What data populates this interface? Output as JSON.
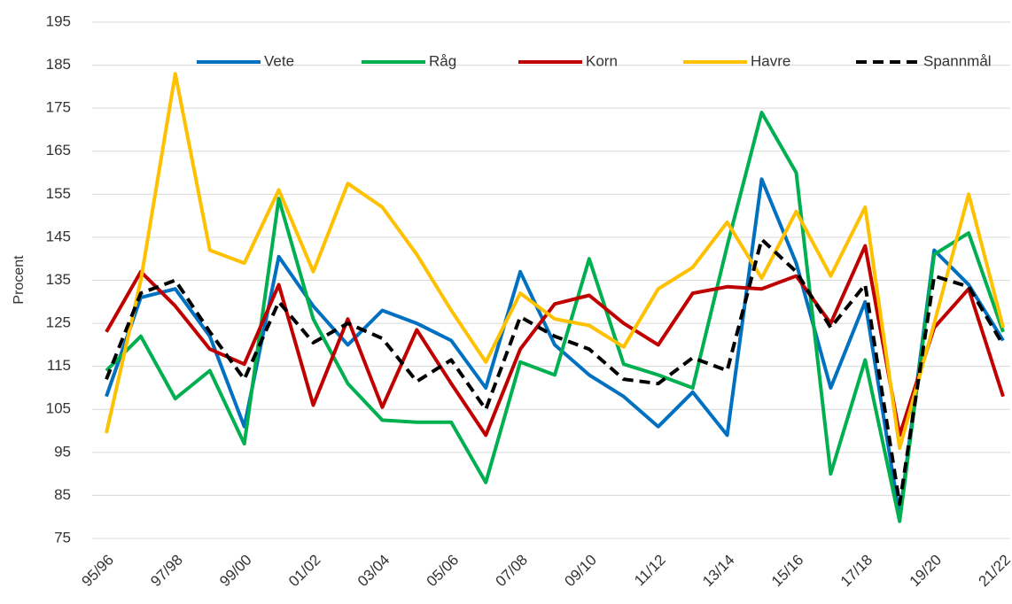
{
  "chart_data": {
    "type": "line",
    "y_label": "Procent",
    "categories": [
      "95/96",
      null,
      "97/98",
      null,
      "99/00",
      null,
      "01/02",
      null,
      "03/04",
      null,
      "05/06",
      null,
      "07/08",
      null,
      "09/10",
      null,
      "11/12",
      null,
      "13/14",
      null,
      "15/16",
      null,
      "17/18",
      null,
      "19/20",
      null,
      "21/22"
    ],
    "ylim": [
      75,
      195
    ],
    "yticks": [
      75,
      85,
      95,
      105,
      115,
      125,
      135,
      145,
      155,
      165,
      175,
      185,
      195
    ],
    "grid": true,
    "legend": "top",
    "series": [
      {
        "name": "Vete",
        "color": "#0070c0",
        "linestyle": "solid",
        "values": [
          108,
          131,
          133,
          122,
          101,
          140.5,
          129,
          120,
          128,
          125,
          121,
          110,
          137,
          120,
          113,
          108,
          101,
          109,
          99,
          158.5,
          139,
          110,
          130,
          80,
          142,
          134,
          121
        ]
      },
      {
        "name": "Råg",
        "color": "#00b050",
        "linestyle": "solid",
        "values": [
          114,
          122,
          107.5,
          114,
          97,
          154,
          126,
          111,
          102.5,
          102,
          102,
          88,
          116,
          113,
          140,
          115.5,
          113,
          110,
          143,
          174,
          160,
          90,
          116.5,
          79,
          141,
          146,
          123
        ]
      },
      {
        "name": "Korn",
        "color": "#c00000",
        "linestyle": "solid",
        "values": [
          123,
          137,
          129,
          119,
          115.5,
          134,
          106,
          126,
          105.5,
          123.5,
          111,
          99,
          119,
          129.5,
          131.5,
          125,
          120,
          132,
          133.5,
          133,
          136,
          125,
          143,
          99,
          124,
          133,
          108
        ]
      },
      {
        "name": "Havre",
        "color": "#ffc000",
        "linestyle": "solid",
        "values": [
          99.5,
          135,
          183,
          142,
          139,
          156,
          137,
          157.5,
          152,
          141,
          128,
          116,
          132,
          126,
          124.5,
          119.5,
          133,
          138,
          148.5,
          135.5,
          151,
          136,
          152,
          96,
          125,
          155,
          124
        ]
      },
      {
        "name": "Spannmål",
        "color": "#000000",
        "linestyle": "dashed",
        "values": [
          112,
          132,
          135,
          123,
          112,
          130,
          120.5,
          125,
          121.5,
          111.5,
          116.5,
          105,
          126.5,
          122,
          119,
          112,
          111,
          117,
          114,
          144.5,
          137,
          124,
          134,
          83,
          136,
          133.5,
          120
        ]
      }
    ]
  }
}
